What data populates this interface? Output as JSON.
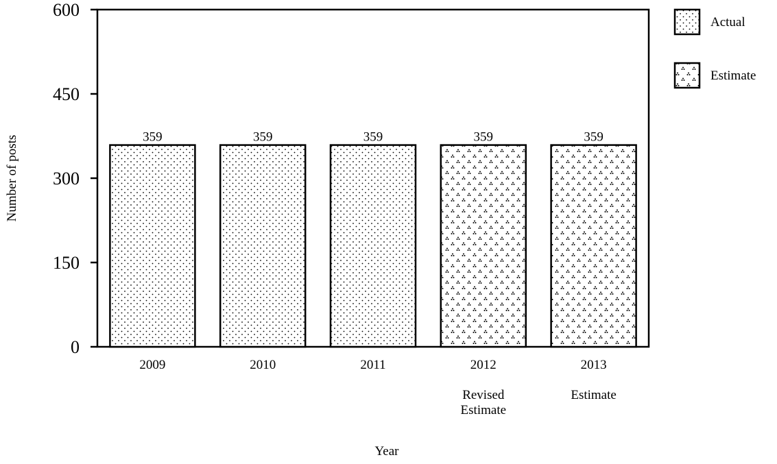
{
  "chart_data": {
    "type": "bar",
    "categories": [
      "2009",
      "2010",
      "2011",
      "2012",
      "2013"
    ],
    "category_sublabels": [
      "",
      "",
      "",
      "Revised\nEstimate",
      "Estimate"
    ],
    "values": [
      359,
      359,
      359,
      359,
      359
    ],
    "series_of_bar": [
      "Actual",
      "Actual",
      "Actual",
      "Estimate",
      "Estimate"
    ],
    "legend": [
      {
        "name": "Actual",
        "pattern": "dots"
      },
      {
        "name": "Estimate",
        "pattern": "triangles"
      }
    ],
    "legend_position": "top-right",
    "xlabel": "Year",
    "ylabel": "Number of posts",
    "ylim": [
      0,
      600
    ],
    "yticks": [
      0,
      150,
      300,
      450,
      600
    ],
    "grid": false,
    "colors": {
      "ink": "#000000",
      "background": "#ffffff"
    }
  }
}
